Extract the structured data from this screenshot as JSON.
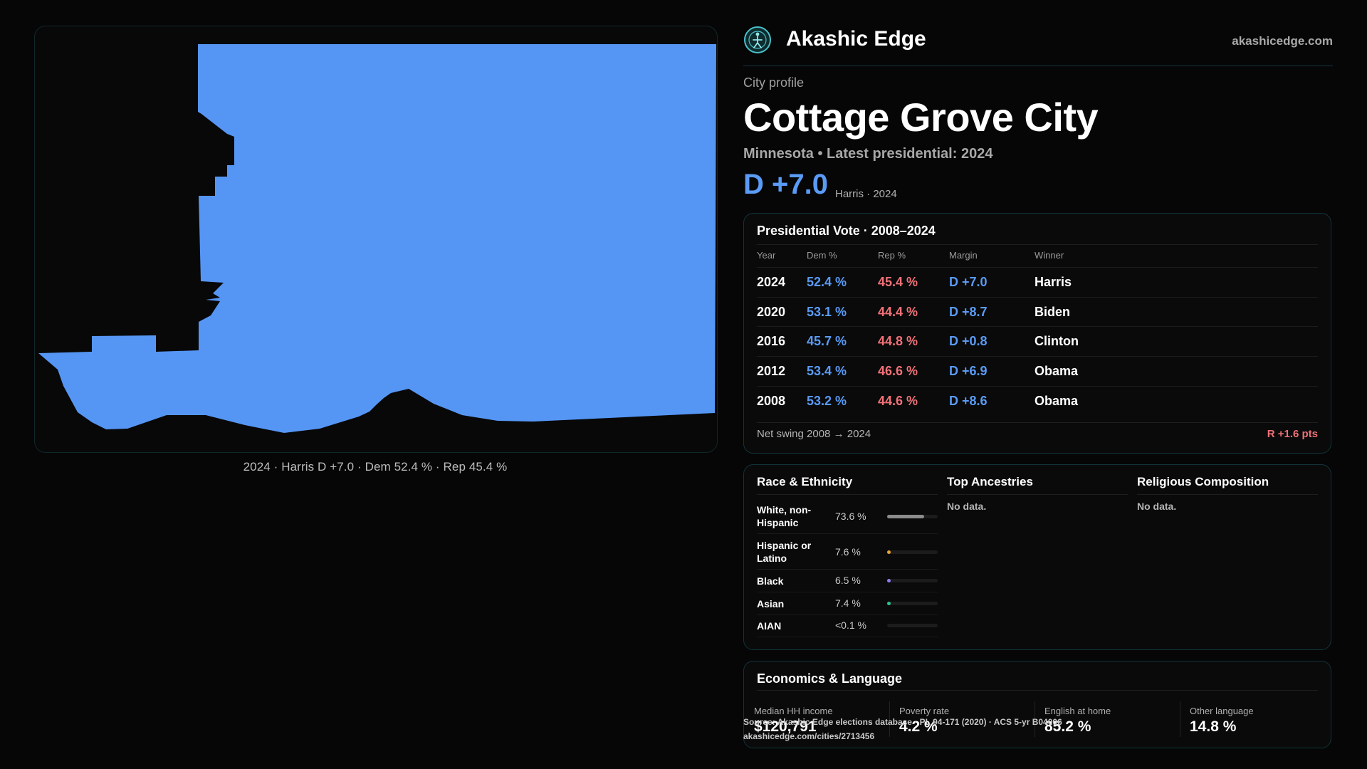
{
  "map": {
    "caption": "2024 · Harris D +7.0 · Dem 52.4 % · Rep 45.4 %",
    "fill_color": "#5596f5"
  },
  "header": {
    "brand": "Akashic Edge",
    "site": "akashicedge.com",
    "logo_icon": "compass-figure-icon"
  },
  "profile": {
    "eyebrow": "City profile",
    "city": "Cottage Grove City",
    "subtitle": "Minnesota • Latest presidential: 2024",
    "margin": "D +7.0",
    "margin_note": "Harris · 2024"
  },
  "vote": {
    "title": "Presidential Vote · 2008–2024",
    "columns": [
      "Year",
      "Dem %",
      "Rep %",
      "Margin",
      "Winner"
    ],
    "rows": [
      {
        "year": "2024",
        "dem": "52.4 %",
        "rep": "45.4 %",
        "margin": "D +7.0",
        "winner": "Harris"
      },
      {
        "year": "2020",
        "dem": "53.1 %",
        "rep": "44.4 %",
        "margin": "D +8.7",
        "winner": "Biden"
      },
      {
        "year": "2016",
        "dem": "45.7 %",
        "rep": "44.8 %",
        "margin": "D +0.8",
        "winner": "Clinton"
      },
      {
        "year": "2012",
        "dem": "53.4 %",
        "rep": "46.6 %",
        "margin": "D +6.9",
        "winner": "Obama"
      },
      {
        "year": "2008",
        "dem": "53.2 %",
        "rep": "44.6 %",
        "margin": "D +8.6",
        "winner": "Obama"
      }
    ],
    "swing_label": "Net swing 2008 → 2024",
    "swing_value": "R +1.6 pts",
    "colors": {
      "dem": "#5a9bf6",
      "rep": "#f07178"
    }
  },
  "race": {
    "title": "Race & Ethnicity",
    "rows": [
      {
        "label": "White, non-Hispanic",
        "pct": "73.6 %",
        "share": 0.736,
        "color": "#8c8c8c"
      },
      {
        "label": "Hispanic or Latino",
        "pct": "7.6 %",
        "share": 0.076,
        "color": "#e8a33a"
      },
      {
        "label": "Black",
        "pct": "6.5 %",
        "share": 0.065,
        "color": "#8a7ff0"
      },
      {
        "label": "Asian",
        "pct": "7.4 %",
        "share": 0.074,
        "color": "#2bc48a"
      },
      {
        "label": "AIAN",
        "pct": "<0.1 %",
        "share": 0.0,
        "color": "#8c8c8c"
      }
    ]
  },
  "ancestries": {
    "title": "Top Ancestries",
    "empty": "No data."
  },
  "religion": {
    "title": "Religious Composition",
    "empty": "No data."
  },
  "economics": {
    "title": "Economics & Language",
    "stats": [
      {
        "label": "Median HH income",
        "value": "$120,791"
      },
      {
        "label": "Poverty rate",
        "value": "4.2 %"
      },
      {
        "label": "English at home",
        "value": "85.2 %"
      },
      {
        "label": "Other language",
        "value": "14.8 %"
      }
    ]
  },
  "footer": {
    "source": "Source: Akashic Edge elections database · PL 94-171 (2020) · ACS 5-yr B04006",
    "url": "akashicedge.com/cities/2713456"
  }
}
